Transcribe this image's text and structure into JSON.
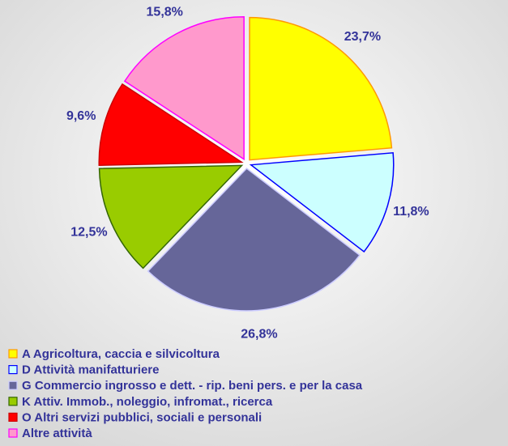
{
  "chart_data": {
    "type": "pie",
    "categories": [
      "A Agricoltura, caccia e silvicoltura",
      "D Attività manifatturiere",
      "G Commercio ingrosso e dett. - rip. beni pers. e per la casa",
      "K Attiv. Immob., noleggio, infromat., ricerca",
      "O Altri servizi pubblici, sociali e personali",
      "Altre attività"
    ],
    "values": [
      23.7,
      11.8,
      26.8,
      12.5,
      9.6,
      15.8
    ],
    "value_labels": [
      "23,7%",
      "11,8%",
      "26,8%",
      "12,5%",
      "9,6%",
      "15,8%"
    ],
    "colors": [
      "#ffff00",
      "#ccffff",
      "#666699",
      "#99cc00",
      "#ff0000",
      "#ff99cc"
    ],
    "edge_colors": [
      "#ff9900",
      "#0000ff",
      "#ccccff",
      "#336600",
      "#cc0000",
      "#ff00ff"
    ],
    "legend": "bottom"
  }
}
